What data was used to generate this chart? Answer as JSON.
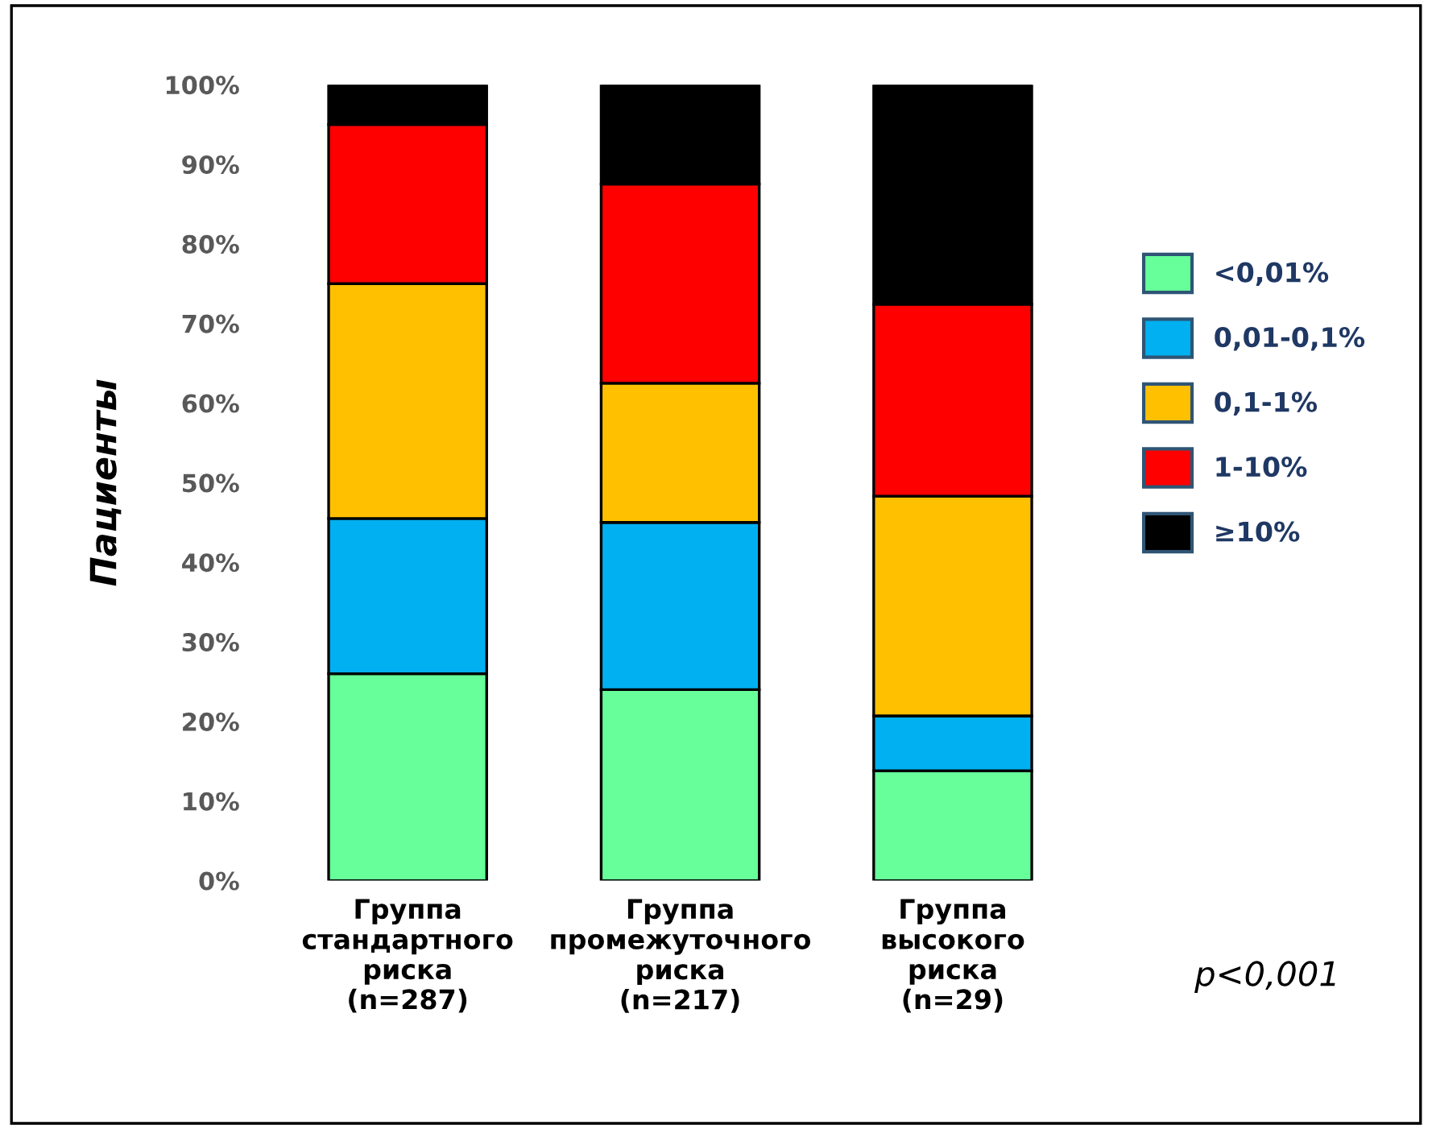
{
  "chart_data": {
    "type": "bar",
    "stacked": true,
    "categories": [
      "Группа\nстандартного\nриска\n(n=287)",
      "Группа\nпромежуточного\nриска\n(n=217)",
      "Группа\nвысокого\nриска\n(n=29)"
    ],
    "ylabel": "Пациенты",
    "series": [
      {
        "name": "<0,01%",
        "color": "#66ff99",
        "values": [
          26,
          24,
          13.8
        ]
      },
      {
        "name": "0,01-0,1%",
        "color": "#00b0f0",
        "values": [
          19.5,
          21,
          6.9
        ]
      },
      {
        "name": "0,1-1%",
        "color": "#ffc000",
        "values": [
          29.5,
          17.5,
          27.6
        ]
      },
      {
        "name": "1-10%",
        "color": "#ff0000",
        "values": [
          20,
          25,
          24.1
        ]
      },
      {
        "name": "≥10%",
        "color": "#000000",
        "values": [
          5,
          12.5,
          27.6
        ]
      }
    ],
    "ylim": [
      0,
      100
    ],
    "yticks": [
      {
        "value": 0,
        "label": "0%"
      },
      {
        "value": 10,
        "label": "10%"
      },
      {
        "value": 20,
        "label": "20%"
      },
      {
        "value": 30,
        "label": "30%"
      },
      {
        "value": 40,
        "label": "40%"
      },
      {
        "value": 50,
        "label": "50%"
      },
      {
        "value": 60,
        "label": "60%"
      },
      {
        "value": 70,
        "label": "70%"
      },
      {
        "value": 80,
        "label": "80%"
      },
      {
        "value": 90,
        "label": "90%"
      },
      {
        "value": 100,
        "label": "100%"
      }
    ],
    "legend": "right",
    "annotations": [
      "p<0,001"
    ]
  }
}
